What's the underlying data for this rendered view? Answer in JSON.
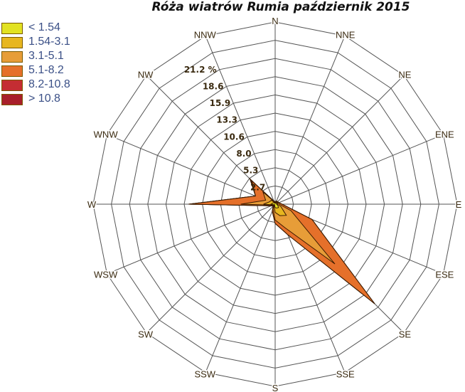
{
  "title": "Róża wiatrów Rumia październik 2015",
  "legend": [
    {
      "label": "< 1.54",
      "color": "#e2e222"
    },
    {
      "label": "1.54-3.1",
      "color": "#e7b61f"
    },
    {
      "label": "3.1-5.1",
      "color": "#e79d38"
    },
    {
      "label": "5.1-8.2",
      "color": "#e5702a"
    },
    {
      "label": "8.2-10.8",
      "color": "#c42d33"
    },
    {
      "label": "> 10.8",
      "color": "#a81f2a"
    }
  ],
  "chart_data": {
    "type": "radar",
    "title": "Róża wiatrów Rumia październik 2015",
    "directions": [
      "N",
      "NNE",
      "NE",
      "ENE",
      "E",
      "ESE",
      "SE",
      "SSE",
      "S",
      "SSW",
      "SW",
      "WSW",
      "W",
      "WNW",
      "NW",
      "NNW"
    ],
    "radial_ticks": [
      "2.7",
      "5.3",
      "8.0",
      "10.6",
      "13.3",
      "15.9",
      "18.6",
      "21.2 %"
    ],
    "radial_max": 26.5,
    "grid": true,
    "legend_position": "top-left",
    "series": [
      {
        "name": "> 10.8",
        "values": [
          0.3,
          0.5,
          0.5,
          0.6,
          1.0,
          5.8,
          20.5,
          4.8,
          2.8,
          1.1,
          0.4,
          0.6,
          12.6,
          3.1,
          5.2,
          0.5
        ]
      },
      {
        "name": "8.2-10.8",
        "values": [
          0.3,
          0.5,
          0.5,
          0.6,
          1.0,
          5.8,
          20.5,
          4.8,
          2.8,
          1.1,
          0.4,
          0.6,
          12.6,
          3.1,
          5.0,
          0.5
        ]
      },
      {
        "name": "5.1-8.2",
        "values": [
          0.3,
          0.5,
          0.5,
          0.6,
          1.0,
          5.8,
          20.5,
          4.8,
          2.8,
          1.1,
          0.4,
          0.6,
          12.5,
          3.1,
          4.8,
          0.5
        ]
      },
      {
        "name": "3.1-5.1",
        "values": [
          0.3,
          0.4,
          0.4,
          0.5,
          0.6,
          2.5,
          12.3,
          3.7,
          2.3,
          0.8,
          0.3,
          0.4,
          5.0,
          1.5,
          2.5,
          0.4
        ]
      },
      {
        "name": "1.54-3.1",
        "values": [
          0.2,
          0.3,
          0.3,
          0.4,
          0.3,
          0.9,
          2.3,
          1.8,
          1.2,
          0.4,
          0.2,
          0.3,
          1.7,
          0.9,
          0.8,
          0.3
        ]
      },
      {
        "name": "< 1.54",
        "values": [
          0.1,
          0.2,
          0.2,
          0.3,
          0.2,
          0.4,
          0.7,
          0.6,
          0.5,
          0.2,
          0.1,
          0.2,
          0.6,
          0.4,
          0.3,
          0.2
        ]
      }
    ]
  }
}
